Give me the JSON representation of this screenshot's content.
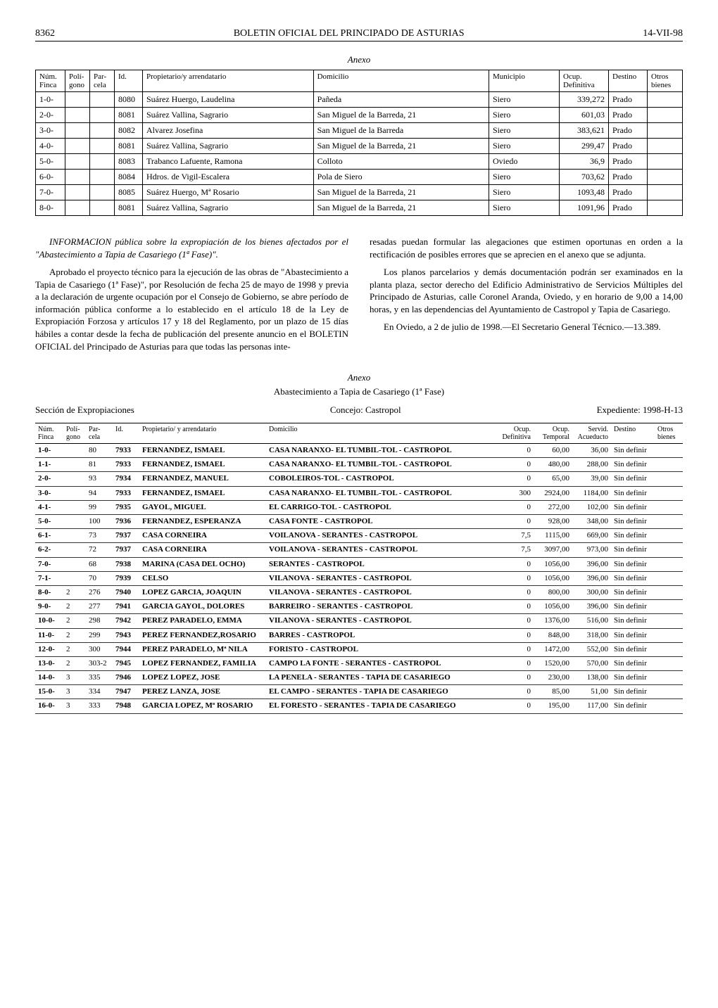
{
  "header": {
    "page_number": "8362",
    "title": "BOLETIN OFICIAL DEL PRINCIPADO DE ASTURIAS",
    "date": "14-VII-98"
  },
  "anexo1": {
    "title": "Anexo",
    "columns": [
      "Núm. Finca",
      "Polí-gono",
      "Par-cela",
      "Id.",
      "Propietario/y arrendatario",
      "Domicilio",
      "Municipio",
      "Ocup. Definitiva",
      "Destino",
      "Otros bienes"
    ],
    "rows": [
      [
        "1-0-",
        "",
        "",
        "8080",
        "Suárez Huergo, Laudelina",
        "Pañeda",
        "Siero",
        "339,272",
        "Prado",
        ""
      ],
      [
        "2-0-",
        "",
        "",
        "8081",
        "Suárez Vallina, Sagrario",
        "San Miguel de la Barreda, 21",
        "Siero",
        "601,03",
        "Prado",
        ""
      ],
      [
        "3-0-",
        "",
        "",
        "8082",
        "Alvarez Josefina",
        "San Miguel de la Barreda",
        "Siero",
        "383,621",
        "Prado",
        ""
      ],
      [
        "4-0-",
        "",
        "",
        "8081",
        "Suárez Vallina, Sagrario",
        "San Miguel de la Barreda, 21",
        "Siero",
        "299,47",
        "Prado",
        ""
      ],
      [
        "5-0-",
        "",
        "",
        "8083",
        "Trabanco Lafuente, Ramona",
        "Colloto",
        "Oviedo",
        "36,9",
        "Prado",
        ""
      ],
      [
        "6-0-",
        "",
        "",
        "8084",
        "Hdros. de Vigil-Escalera",
        "Pola de Siero",
        "Siero",
        "703,62",
        "Prado",
        ""
      ],
      [
        "7-0-",
        "",
        "",
        "8085",
        "Suárez Huergo, Mª Rosario",
        "San Miguel de la Barreda, 21",
        "Siero",
        "1093,48",
        "Prado",
        ""
      ],
      [
        "8-0-",
        "",
        "",
        "8081",
        "Suárez Vallina, Sagrario",
        "San Miguel de la Barreda, 21",
        "Siero",
        "1091,96",
        "Prado",
        ""
      ]
    ]
  },
  "info": {
    "title": "INFORMACION pública sobre la expropiación de los bienes afectados por el \"Abastecimiento a Tapia de Casariego (1ª Fase)\".",
    "p1": "Aprobado el proyecto técnico para la ejecución de las obras de \"Abastecimiento a Tapia de Casariego (1ª Fase)\", por Resolución de fecha 25 de mayo de 1998 y previa a la declaración de urgente ocupación por el Consejo de Gobierno, se abre período de información pública conforme a lo establecido en el artículo 18 de la Ley de Expropiación Forzosa y artículos 17 y 18 del Reglamento, por un plazo de 15 días hábiles a contar desde la fecha de publicación del presente anuncio en el BOLETIN OFICIAL del Principado de Asturias para que todas las personas inte-",
    "p2": "resadas puedan formular las alegaciones que estimen oportunas en orden a la rectificación de posibles errores que se aprecien en el anexo que se adjunta.",
    "p3": "Los planos parcelarios y demás documentación podrán ser examinados en la planta plaza, sector derecho del Edificio Administrativo de Servicios Múltiples del Principado de Asturias, calle Coronel Aranda, Oviedo, y en horario de 9,00 a 14,00 horas, y en las dependencias del Ayuntamiento de Castropol y Tapia de Casariego.",
    "p4": "En Oviedo, a 2 de julio de 1998.—El Secretario General Técnico.—13.389."
  },
  "anexo2": {
    "title": "Anexo",
    "subtitle": "Abastecimiento a Tapia de Casariego (1ª Fase)",
    "meta_left": "Sección de Expropiaciones",
    "meta_center": "Concejo: Castropol",
    "meta_right": "Expediente: 1998-H-13",
    "columns": [
      "Núm. Finca",
      "Polí-gono",
      "Par-cela",
      "Id.",
      "Propietario/ y arrendatario",
      "Domicilio",
      "Ocup. Definitiva",
      "Ocup. Temporal",
      "Servid. Acueducto",
      "Destino",
      "Otros bienes"
    ],
    "rows": [
      [
        "1-0-",
        "",
        "80",
        "7933",
        "FERNANDEZ, ISMAEL",
        "CASA NARANXO- EL TUMBIL-TOL - CASTROPOL",
        "0",
        "60,00",
        "36,00",
        "Sin definir",
        ""
      ],
      [
        "1-1-",
        "",
        "81",
        "7933",
        "FERNANDEZ, ISMAEL",
        "CASA NARANXO- EL TUMBIL-TOL - CASTROPOL",
        "0",
        "480,00",
        "288,00",
        "Sin definir",
        ""
      ],
      [
        "2-0-",
        "",
        "93",
        "7934",
        "FERNANDEZ, MANUEL",
        "COBOLEIROS-TOL - CASTROPOL",
        "0",
        "65,00",
        "39,00",
        "Sin definir",
        ""
      ],
      [
        "3-0-",
        "",
        "94",
        "7933",
        "FERNANDEZ, ISMAEL",
        "CASA NARANXO- EL TUMBIL-TOL - CASTROPOL",
        "300",
        "2924,00",
        "1184,00",
        "Sin definir",
        ""
      ],
      [
        "4-1-",
        "",
        "99",
        "7935",
        "GAYOL, MIGUEL",
        "EL CARRIGO-TOL - CASTROPOL",
        "0",
        "272,00",
        "102,00",
        "Sin definir",
        ""
      ],
      [
        "5-0-",
        "",
        "100",
        "7936",
        "FERNANDEZ, ESPERANZA",
        "CASA FONTE - CASTROPOL",
        "0",
        "928,00",
        "348,00",
        "Sin definir",
        ""
      ],
      [
        "6-1-",
        "",
        "73",
        "7937",
        "CASA CORNEIRA",
        "VOILANOVA - SERANTES - CASTROPOL",
        "7,5",
        "1115,00",
        "669,00",
        "Sin definir",
        ""
      ],
      [
        "6-2-",
        "",
        "72",
        "7937",
        "CASA CORNEIRA",
        "VOILANOVA - SERANTES - CASTROPOL",
        "7,5",
        "3097,00",
        "973,00",
        "Sin definir",
        ""
      ],
      [
        "7-0-",
        "",
        "68",
        "7938",
        "MARINA (CASA DEL OCHO)",
        "SERANTES - CASTROPOL",
        "0",
        "1056,00",
        "396,00",
        "Sin definir",
        ""
      ],
      [
        "7-1-",
        "",
        "70",
        "7939",
        "CELSO",
        "VILANOVA - SERANTES - CASTROPOL",
        "0",
        "1056,00",
        "396,00",
        "Sin definir",
        ""
      ],
      [
        "8-0-",
        "2",
        "276",
        "7940",
        "LOPEZ GARCIA, JOAQUIN",
        "VILANOVA - SERANTES - CASTROPOL",
        "0",
        "800,00",
        "300,00",
        "Sin definir",
        ""
      ],
      [
        "9-0-",
        "2",
        "277",
        "7941",
        "GARCIA GAYOL, DOLORES",
        "BARREIRO - SERANTES - CASTROPOL",
        "0",
        "1056,00",
        "396,00",
        "Sin definir",
        ""
      ],
      [
        "10-0-",
        "2",
        "298",
        "7942",
        "PEREZ PARADELO, EMMA",
        "VILANOVA - SERANTES - CASTROPOL",
        "0",
        "1376,00",
        "516,00",
        "Sin definir",
        ""
      ],
      [
        "11-0-",
        "2",
        "299",
        "7943",
        "PEREZ FERNANDEZ,ROSARIO",
        "BARRES - CASTROPOL",
        "0",
        "848,00",
        "318,00",
        "Sin definir",
        ""
      ],
      [
        "12-0-",
        "2",
        "300",
        "7944",
        "PEREZ PARADELO, Mª NILA",
        "FORISTO - CASTROPOL",
        "0",
        "1472,00",
        "552,00",
        "Sin definir",
        ""
      ],
      [
        "13-0-",
        "2",
        "303-2",
        "7945",
        "LOPEZ FERNANDEZ, FAMILIA",
        "CAMPO LA FONTE - SERANTES - CASTROPOL",
        "0",
        "1520,00",
        "570,00",
        "Sin definir",
        ""
      ],
      [
        "14-0-",
        "3",
        "335",
        "7946",
        "LOPEZ LOPEZ, JOSE",
        "LA PENELA - SERANTES - TAPIA DE CASARIEGO",
        "0",
        "230,00",
        "138,00",
        "Sin definir",
        ""
      ],
      [
        "15-0-",
        "3",
        "334",
        "7947",
        "PEREZ LANZA, JOSE",
        "EL CAMPO - SERANTES - TAPIA DE CASARIEGO",
        "0",
        "85,00",
        "51,00",
        "Sin definir",
        ""
      ],
      [
        "16-0-",
        "3",
        "333",
        "7948",
        "GARCIA LOPEZ, Mª ROSARIO",
        "EL FORESTO - SERANTES - TAPIA DE CASARIEGO",
        "0",
        "195,00",
        "117,00",
        "Sin definir",
        ""
      ]
    ]
  }
}
